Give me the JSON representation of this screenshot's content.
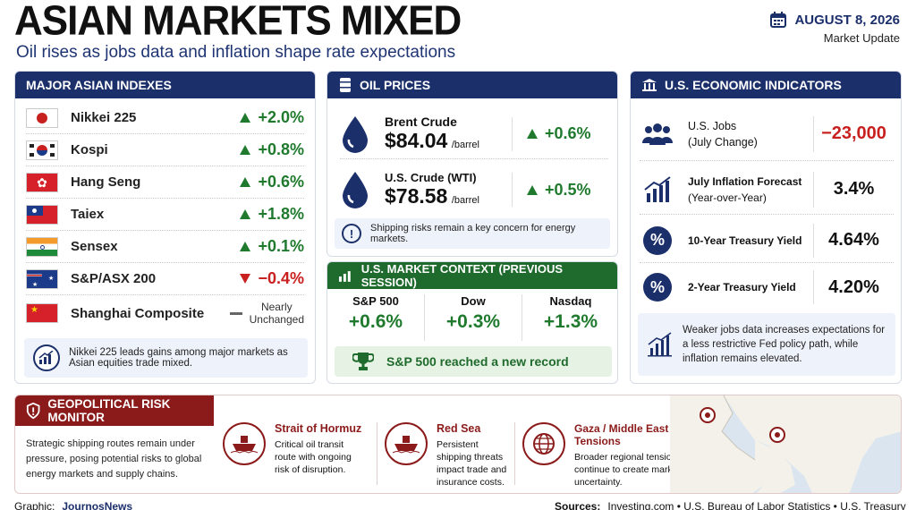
{
  "header": {
    "title": "ASIAN MARKETS MIXED",
    "subtitle": "Oil rises as jobs data and inflation shape rate expectations",
    "date": "AUGUST 8, 2026",
    "update": "Market Update"
  },
  "indexes": {
    "title": "MAJOR ASIAN INDEXES",
    "items": [
      {
        "name": "Nikkei 225",
        "change": "+2.0%",
        "dir": "up"
      },
      {
        "name": "Kospi",
        "change": "+0.8%",
        "dir": "up"
      },
      {
        "name": "Hang Seng",
        "change": "+0.6%",
        "dir": "up"
      },
      {
        "name": "Taiex",
        "change": "+1.8%",
        "dir": "up"
      },
      {
        "name": "Sensex",
        "change": "+0.1%",
        "dir": "up"
      },
      {
        "name": "S&P/ASX 200",
        "change": "−0.4%",
        "dir": "down"
      },
      {
        "name": "Shanghai Composite",
        "change_line1": "Nearly",
        "change_line2": "Unchanged",
        "dir": "flat"
      }
    ],
    "note": "Nikkei 225 leads gains among major markets as Asian equities trade mixed."
  },
  "oil": {
    "title": "OIL PRICES",
    "items": [
      {
        "name": "Brent Crude",
        "price": "$84.04",
        "unit": "/barrel",
        "change": "+0.6%"
      },
      {
        "name": "U.S. Crude (WTI)",
        "price": "$78.58",
        "unit": "/barrel",
        "change": "+0.5%"
      }
    ],
    "note": "Shipping risks remain a key concern for energy markets."
  },
  "context": {
    "title": "U.S. MARKET CONTEXT (PREVIOUS SESSION)",
    "items": [
      {
        "name": "S&P 500",
        "change": "+0.6%"
      },
      {
        "name": "Dow",
        "change": "+0.3%"
      },
      {
        "name": "Nasdaq",
        "change": "+1.3%"
      }
    ],
    "record": "S&P 500 reached a new record"
  },
  "econ": {
    "title": "U.S. ECONOMIC INDICATORS",
    "items": [
      {
        "line1": "U.S. Jobs",
        "line2": "(July Change)",
        "value": "−23,000"
      },
      {
        "line1": "July Inflation Forecast",
        "line2": "(Year-over-Year)",
        "value": "3.4%"
      },
      {
        "line1": "10-Year Treasury Yield",
        "line2": "",
        "value": "4.64%"
      },
      {
        "line1": "2-Year Treasury Yield",
        "line2": "",
        "value": "4.20%"
      }
    ],
    "note": "Weaker jobs data increases expectations for a less restrictive Fed policy path, while inflation remains elevated."
  },
  "geo": {
    "title": "GEOPOLITICAL RISK MONITOR",
    "intro": "Strategic shipping routes remain under pressure, posing potential risks to global energy markets and supply chains.",
    "items": [
      {
        "name": "Strait of Hormuz",
        "desc": "Critical oil transit route with ongoing risk of disruption."
      },
      {
        "name": "Red Sea",
        "desc": "Persistent shipping threats impact trade and insurance costs."
      },
      {
        "name": "Gaza / Middle East Tensions",
        "desc": "Broader regional tensions continue to create market uncertainty."
      }
    ]
  },
  "footer": {
    "graphic_label": "Graphic:",
    "graphic_value": "JournosNews",
    "sources_label": "Sources:",
    "sources_value": "Investing.com  •  U.S. Bureau of Labor Statistics  •  U.S. Treasury"
  },
  "colors": {
    "navy": "#1b2f6b",
    "green": "#1f7a2e",
    "red": "#c8201e",
    "maroon": "#8b1a1a"
  }
}
